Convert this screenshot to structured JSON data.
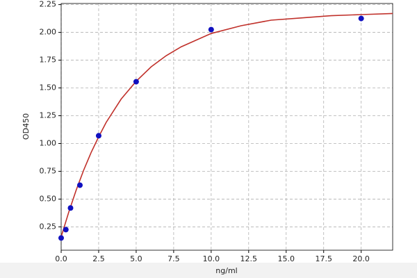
{
  "chart_data": {
    "type": "scatter",
    "xlabel": "ng/ml",
    "ylabel": "OD450",
    "xlim": [
      0,
      22.1
    ],
    "ylim": [
      0.04,
      2.26
    ],
    "xticks": [
      {
        "value": 0,
        "label": "0.0"
      },
      2.5,
      {
        "value": 5,
        "label": "5.0"
      },
      7.5,
      {
        "value": 10,
        "label": "10.0"
      },
      12.5,
      {
        "value": 15,
        "label": "15.0"
      },
      17.5,
      {
        "value": 20,
        "label": "20.0"
      }
    ],
    "yticks": [
      0.25,
      {
        "value": 0.5,
        "label": "0.50"
      },
      0.75,
      {
        "value": 1,
        "label": "1.00"
      },
      1.25,
      {
        "value": 1.5,
        "label": "1.50"
      },
      1.75,
      {
        "value": 2,
        "label": "2.00"
      },
      2.25
    ],
    "grid": true,
    "series": [
      {
        "type": "scatter",
        "color": "#1010c0",
        "x": [
          0,
          0.3125,
          0.625,
          1.25,
          2.5,
          5,
          10,
          20
        ],
        "values": [
          0.15,
          0.225,
          0.42,
          0.625,
          1.07,
          1.556,
          2.025,
          2.125
        ]
      },
      {
        "type": "line",
        "color": "#c0302a",
        "x": [
          0,
          0.5,
          1,
          1.5,
          2,
          2.5,
          3,
          4,
          5,
          6,
          7,
          8,
          10,
          12,
          14,
          16,
          18,
          20,
          22.1
        ],
        "values": [
          0.16,
          0.38,
          0.58,
          0.76,
          0.92,
          1.06,
          1.19,
          1.4,
          1.56,
          1.69,
          1.79,
          1.87,
          1.99,
          2.06,
          2.11,
          2.13,
          2.15,
          2.16,
          2.17
        ]
      }
    ]
  }
}
